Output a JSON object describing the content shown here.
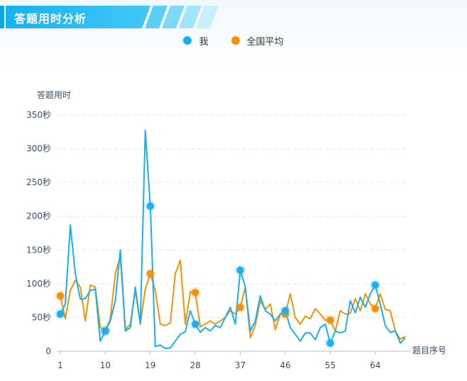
{
  "header": {
    "title": "答题用时分析"
  },
  "colors": {
    "me": "#1aaeee",
    "avg": "#f0920a",
    "header": "#1fb6f2"
  },
  "chart_data": {
    "type": "line",
    "ylabel": "答题用时",
    "xlabel": "题目序号",
    "ylim": [
      0,
      350
    ],
    "yticks": [
      0,
      50,
      100,
      150,
      200,
      250,
      300,
      350
    ],
    "ytick_labels": [
      "0",
      "50秒",
      "100秒",
      "150秒",
      "200秒",
      "250秒",
      "300秒",
      "350秒"
    ],
    "xticks": [
      1,
      10,
      19,
      28,
      37,
      46,
      55,
      64
    ],
    "xlim": [
      1,
      70
    ],
    "grid": "horizontal dashed",
    "series": [
      {
        "name": "我",
        "color": "#1aaeee",
        "x": [
          1,
          2,
          3,
          4,
          5,
          6,
          7,
          8,
          9,
          10,
          11,
          12,
          13,
          14,
          15,
          16,
          17,
          18,
          19,
          20,
          21,
          22,
          23,
          24,
          25,
          26,
          27,
          28,
          29,
          30,
          31,
          32,
          33,
          34,
          35,
          36,
          37,
          38,
          39,
          40,
          41,
          42,
          43,
          44,
          45,
          46,
          47,
          48,
          49,
          50,
          51,
          52,
          53,
          54,
          55,
          56,
          57,
          58,
          59,
          60,
          61,
          62,
          63,
          64,
          65,
          66,
          67,
          68,
          69,
          70
        ],
        "values": [
          55,
          70,
          187,
          115,
          77,
          78,
          90,
          92,
          15,
          30,
          45,
          75,
          150,
          30,
          35,
          95,
          40,
          327,
          215,
          7,
          9,
          4,
          5,
          15,
          25,
          29,
          60,
          40,
          28,
          35,
          30,
          38,
          35,
          50,
          65,
          40,
          120,
          95,
          30,
          45,
          82,
          60,
          55,
          45,
          55,
          60,
          35,
          25,
          15,
          27,
          27,
          17,
          35,
          40,
          12,
          30,
          27,
          30,
          75,
          57,
          80,
          65,
          85,
          98,
          70,
          38,
          28,
          30,
          12,
          20
        ],
        "highlight": [
          1,
          10,
          19,
          28,
          37,
          46,
          55,
          64
        ]
      },
      {
        "name": "全国平均",
        "color": "#f0920a",
        "x": [
          1,
          2,
          3,
          4,
          5,
          6,
          7,
          8,
          9,
          10,
          11,
          12,
          13,
          14,
          15,
          16,
          17,
          18,
          19,
          20,
          21,
          22,
          23,
          24,
          25,
          26,
          27,
          28,
          29,
          30,
          31,
          32,
          33,
          34,
          35,
          36,
          37,
          38,
          39,
          40,
          41,
          42,
          43,
          44,
          45,
          46,
          47,
          48,
          49,
          50,
          51,
          52,
          53,
          54,
          55,
          56,
          57,
          58,
          59,
          60,
          61,
          62,
          63,
          64,
          65,
          66,
          67,
          68,
          69,
          70
        ],
        "values": [
          82,
          48,
          90,
          105,
          95,
          45,
          98,
          95,
          35,
          30,
          48,
          115,
          140,
          32,
          40,
          90,
          40,
          92,
          115,
          90,
          40,
          38,
          42,
          115,
          135,
          40,
          88,
          87,
          36,
          40,
          45,
          40,
          45,
          50,
          60,
          55,
          65,
          95,
          20,
          38,
          75,
          62,
          70,
          32,
          55,
          55,
          85,
          50,
          40,
          52,
          48,
          63,
          55,
          46,
          46,
          30,
          60,
          55,
          56,
          78,
          60,
          85,
          70,
          63,
          85,
          62,
          60,
          30,
          18,
          22
        ],
        "highlight": [
          1,
          10,
          19,
          28,
          37,
          46,
          55,
          64
        ]
      }
    ]
  }
}
